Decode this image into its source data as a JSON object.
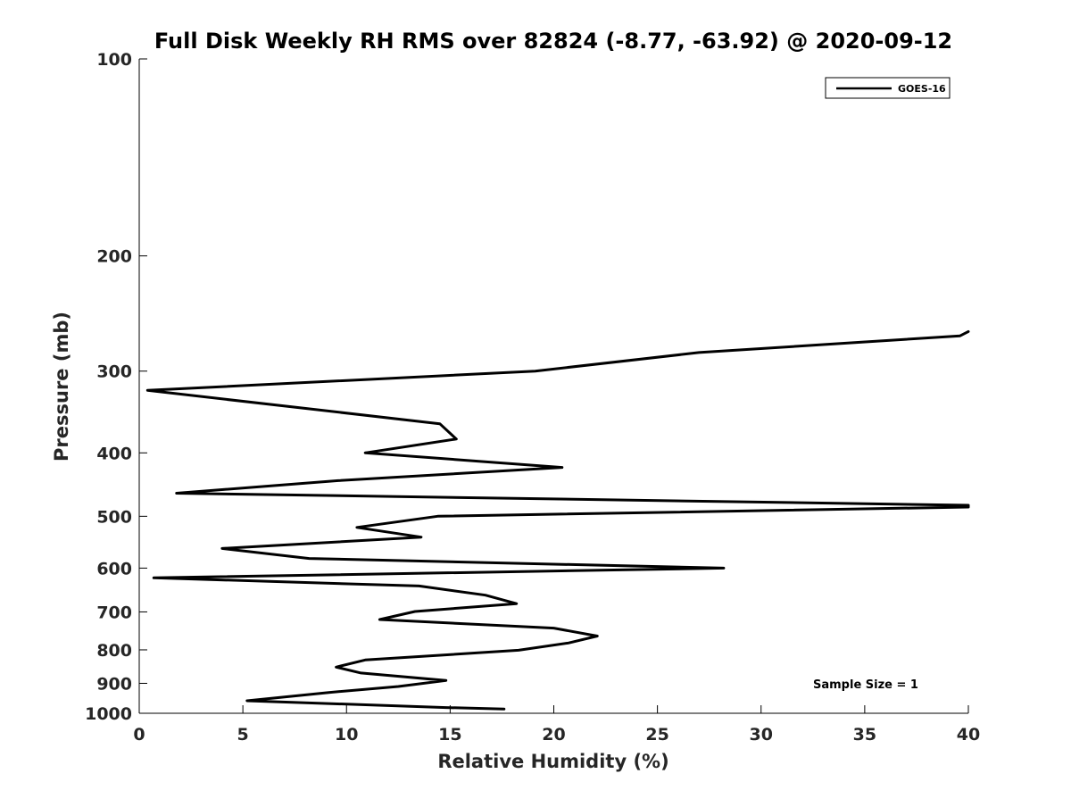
{
  "chart_data": {
    "type": "line",
    "title": "Full Disk Weekly RH RMS over 82824 (-8.77, -63.92) @ 2020-09-12",
    "xlabel": "Relative Humidity (%)",
    "ylabel": "Pressure (mb)",
    "xlim": [
      0,
      40
    ],
    "ylim": [
      1000,
      100
    ],
    "y_scale": "log",
    "x_ticks": [
      "0",
      "5",
      "10",
      "15",
      "20",
      "25",
      "30",
      "35",
      "40"
    ],
    "y_ticks": [
      "100",
      "200",
      "300",
      "400",
      "500",
      "600",
      "700",
      "800",
      "900",
      "1000"
    ],
    "grid": false,
    "legend_position": "top-right",
    "annotation": "Sample Size = 1",
    "series": [
      {
        "name": "GOES-16",
        "color": "#000000",
        "x": [
          40.0,
          39.6,
          27.0,
          19.1,
          0.4,
          14.5,
          15.3,
          10.9,
          20.4,
          9.6,
          1.8,
          40.0,
          40.0,
          14.4,
          10.5,
          13.6,
          4.0,
          8.2,
          28.2,
          0.7,
          13.5,
          16.7,
          18.2,
          13.3,
          11.6,
          20.0,
          22.1,
          20.7,
          18.3,
          10.9,
          9.5,
          10.7,
          14.8,
          12.5,
          9.2,
          5.2,
          14.8,
          17.6
        ],
        "y": [
          261,
          265,
          281,
          300,
          321,
          361,
          381,
          400,
          421,
          441,
          461,
          481,
          484,
          500,
          520,
          538,
          560,
          580,
          600,
          621,
          639,
          660,
          680,
          699,
          719,
          741,
          762,
          781,
          801,
          829,
          850,
          868,
          891,
          910,
          929,
          957,
          980,
          985
        ]
      }
    ]
  }
}
